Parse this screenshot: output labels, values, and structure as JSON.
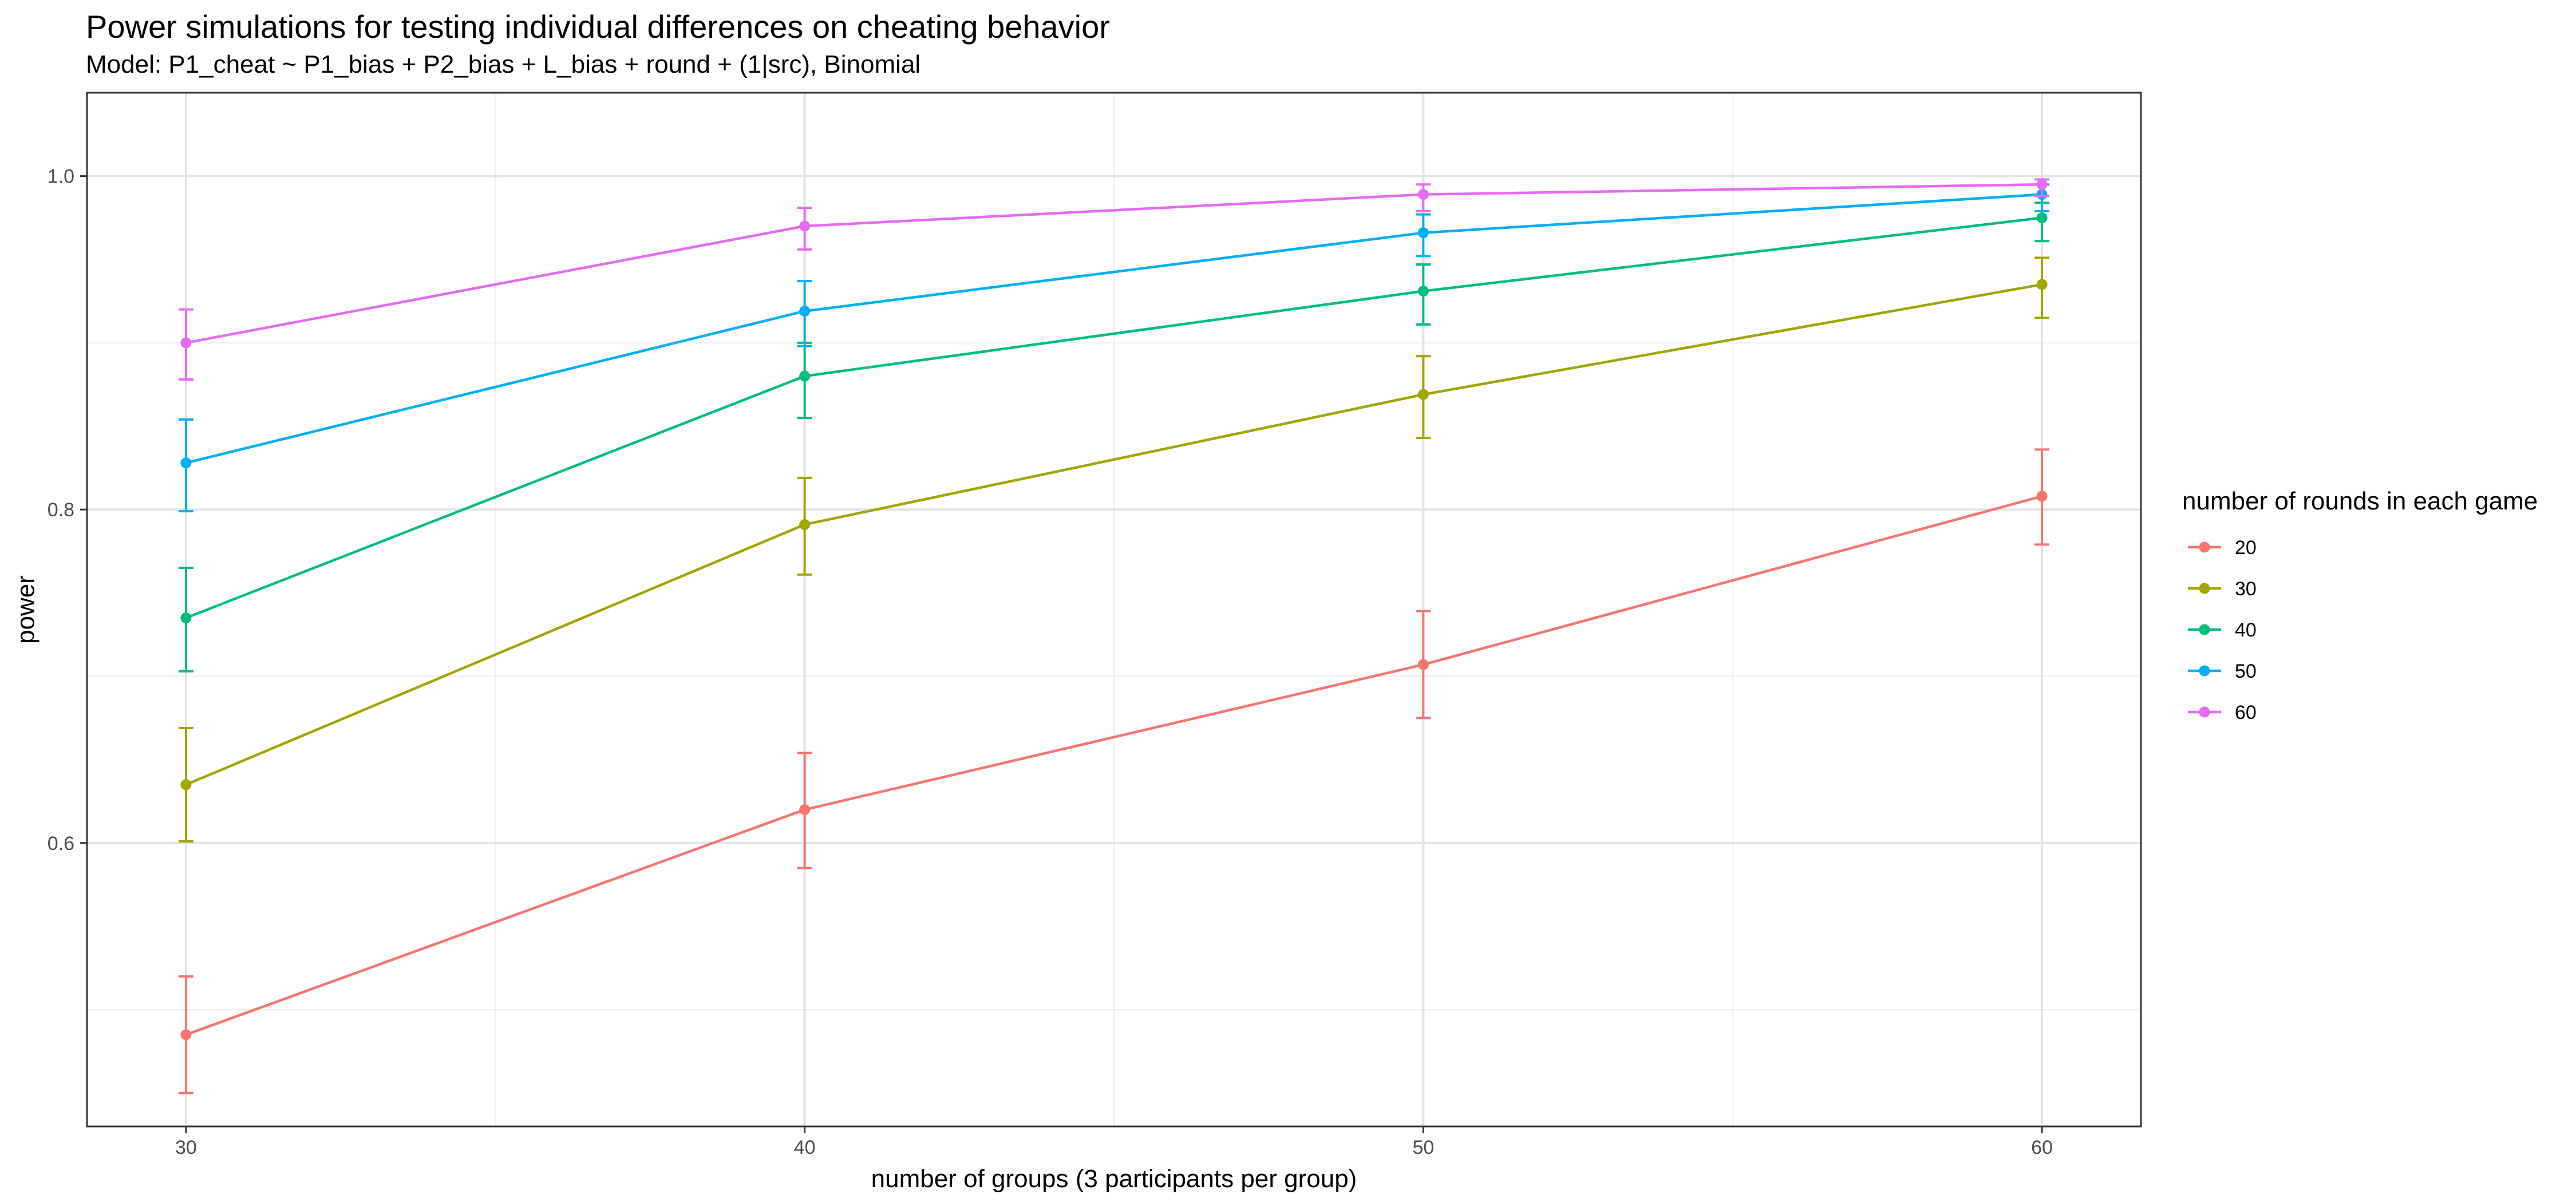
{
  "chart_data": {
    "type": "line",
    "title": "Power simulations for testing individual differences on cheating behavior",
    "subtitle": "Model: P1_cheat ~ P1_bias + P2_bias + L_bias + round + (1|src), Binomial",
    "xlabel": "number of groups (3 participants per group)",
    "ylabel": "power",
    "x": [
      30,
      40,
      50,
      60
    ],
    "x_ticks": [
      "30",
      "40",
      "50",
      "60"
    ],
    "y_ticks": [
      "0.6",
      "0.8",
      "1.0"
    ],
    "y_tick_values": [
      0.6,
      0.8,
      1.0
    ],
    "xlim": [
      28.4,
      61.6
    ],
    "ylim": [
      0.43,
      1.05
    ],
    "grid": true,
    "legend": {
      "title": "number of rounds in each game",
      "position": "right"
    },
    "error_bars": true,
    "series": [
      {
        "name": "20",
        "color": "#F8766D",
        "values": [
          0.485,
          0.62,
          0.707,
          0.808
        ],
        "lower": [
          0.45,
          0.585,
          0.675,
          0.779
        ],
        "upper": [
          0.52,
          0.654,
          0.739,
          0.836
        ]
      },
      {
        "name": "30",
        "color": "#A3A500",
        "values": [
          0.635,
          0.791,
          0.869,
          0.935
        ],
        "lower": [
          0.601,
          0.761,
          0.843,
          0.915
        ],
        "upper": [
          0.669,
          0.819,
          0.892,
          0.951
        ]
      },
      {
        "name": "40",
        "color": "#00BF7D",
        "values": [
          0.735,
          0.88,
          0.931,
          0.975
        ],
        "lower": [
          0.703,
          0.855,
          0.911,
          0.961
        ],
        "upper": [
          0.765,
          0.9,
          0.947,
          0.984
        ]
      },
      {
        "name": "50",
        "color": "#00B0F6",
        "values": [
          0.828,
          0.919,
          0.966,
          0.989
        ],
        "lower": [
          0.799,
          0.898,
          0.952,
          0.979
        ],
        "upper": [
          0.854,
          0.937,
          0.977,
          0.995
        ]
      },
      {
        "name": "60",
        "color": "#E76BF3",
        "values": [
          0.9,
          0.97,
          0.989,
          0.995
        ],
        "lower": [
          0.878,
          0.956,
          0.979,
          0.988
        ],
        "upper": [
          0.92,
          0.981,
          0.995,
          0.998
        ]
      }
    ]
  }
}
